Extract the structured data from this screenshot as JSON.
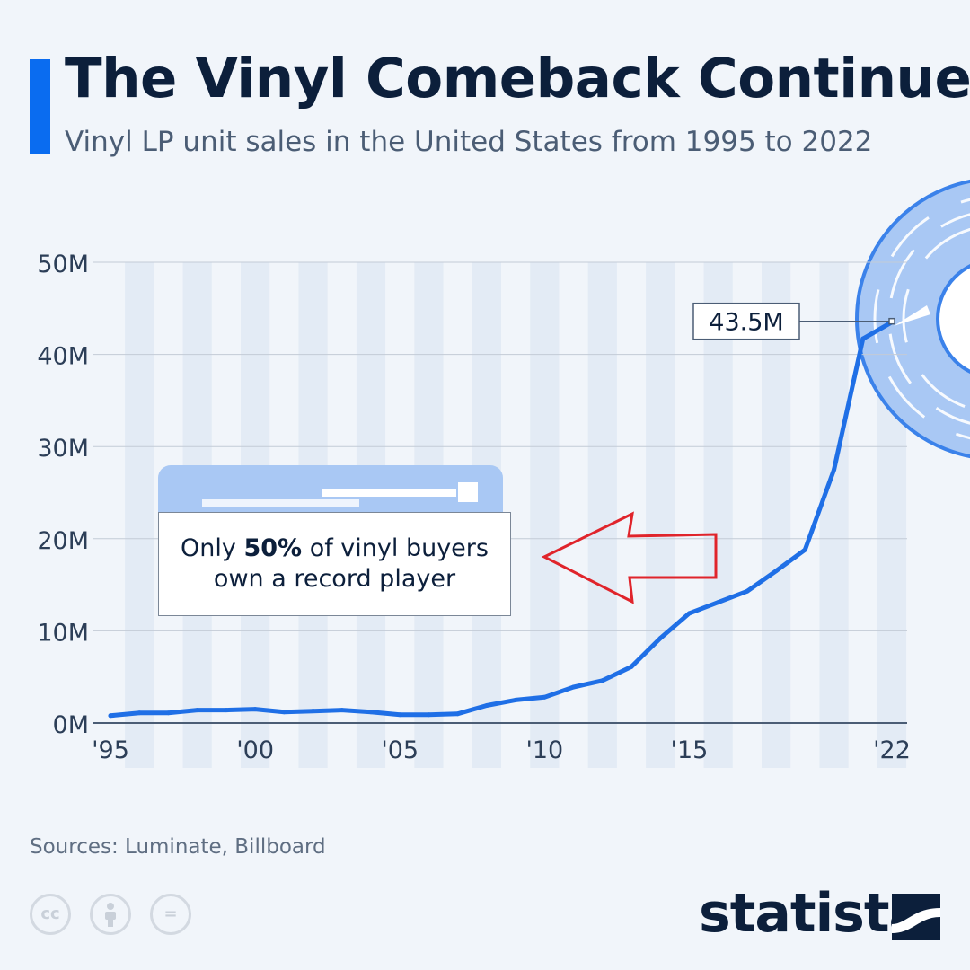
{
  "header": {
    "title": "The Vinyl Comeback Continues",
    "subtitle": "Vinyl LP unit sales in the United States from 1995 to 2022"
  },
  "colors": {
    "accent": "#0a6cf0",
    "line": "#1f6fe6",
    "background": "#f1f5fa",
    "stripe": "#e3ebf5",
    "text": "#0c1f3b",
    "arrow": "#e0242b"
  },
  "annotation": {
    "prefix": "Only ",
    "highlight": "50%",
    "suffix": " of vinyl buyers own a record player"
  },
  "chart_data": {
    "type": "line",
    "x": [
      1995,
      1996,
      1997,
      1998,
      1999,
      2000,
      2001,
      2002,
      2003,
      2004,
      2005,
      2006,
      2007,
      2008,
      2009,
      2010,
      2011,
      2012,
      2013,
      2014,
      2015,
      2016,
      2017,
      2018,
      2019,
      2020,
      2021,
      2022
    ],
    "series": [
      {
        "values": [
          0.8,
          1.1,
          1.1,
          1.4,
          1.4,
          1.5,
          1.2,
          1.3,
          1.4,
          1.2,
          0.9,
          0.9,
          1.0,
          1.9,
          2.5,
          2.8,
          3.9,
          4.6,
          6.1,
          9.2,
          11.9,
          13.1,
          14.3,
          16.5,
          18.8,
          27.5,
          41.7,
          43.5
        ]
      }
    ],
    "ylim": [
      0,
      50
    ],
    "yticks": [
      "0M",
      "10M",
      "20M",
      "30M",
      "40M",
      "50M"
    ],
    "xticks": [
      "'95",
      "'00",
      "'05",
      "'10",
      "'15",
      "'22"
    ],
    "xtick_years": [
      1995,
      2000,
      2005,
      2010,
      2015,
      2022
    ],
    "callout": {
      "label": "43.5M",
      "year": 2022
    },
    "grid": true
  },
  "footer": {
    "sources": "Sources: Luminate, Billboard",
    "brand": "statista",
    "cc_icons": [
      "cc-icon",
      "attribution-icon",
      "no-derivatives-icon"
    ],
    "cc_labels": [
      "cc",
      "",
      "="
    ]
  }
}
